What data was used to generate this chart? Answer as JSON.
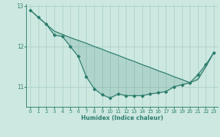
{
  "xlabel": "Humidex (Indice chaleur)",
  "bg_color": "#cce8e0",
  "line_color": "#2e7d6e",
  "grid_color": "#aacfc8",
  "x_values": [
    0,
    1,
    2,
    3,
    4,
    5,
    6,
    7,
    8,
    9,
    10,
    11,
    12,
    13,
    14,
    15,
    16,
    17,
    18,
    19,
    20,
    21,
    22,
    23
  ],
  "line1_y": [
    12.9,
    12.72,
    12.55,
    12.38,
    12.3,
    12.22,
    12.15,
    12.08,
    12.0,
    11.93,
    11.85,
    11.78,
    11.7,
    11.63,
    11.55,
    11.48,
    11.4,
    11.33,
    11.25,
    11.18,
    11.1,
    11.18,
    11.5,
    11.85
  ],
  "line2_y": [
    12.9,
    12.72,
    12.55,
    12.28,
    12.25,
    12.0,
    11.75,
    11.25,
    10.95,
    10.8,
    10.72,
    10.82,
    10.78,
    10.78,
    10.78,
    10.82,
    10.85,
    10.88,
    11.0,
    11.05,
    11.1,
    11.3,
    11.55,
    11.85
  ],
  "xlim": [
    -0.5,
    23.5
  ],
  "ylim": [
    10.5,
    13.05
  ],
  "yticks": [
    11,
    12,
    13
  ],
  "xticks": [
    0,
    1,
    2,
    3,
    4,
    5,
    6,
    7,
    8,
    9,
    10,
    11,
    12,
    13,
    14,
    15,
    16,
    17,
    18,
    19,
    20,
    21,
    22,
    23
  ]
}
